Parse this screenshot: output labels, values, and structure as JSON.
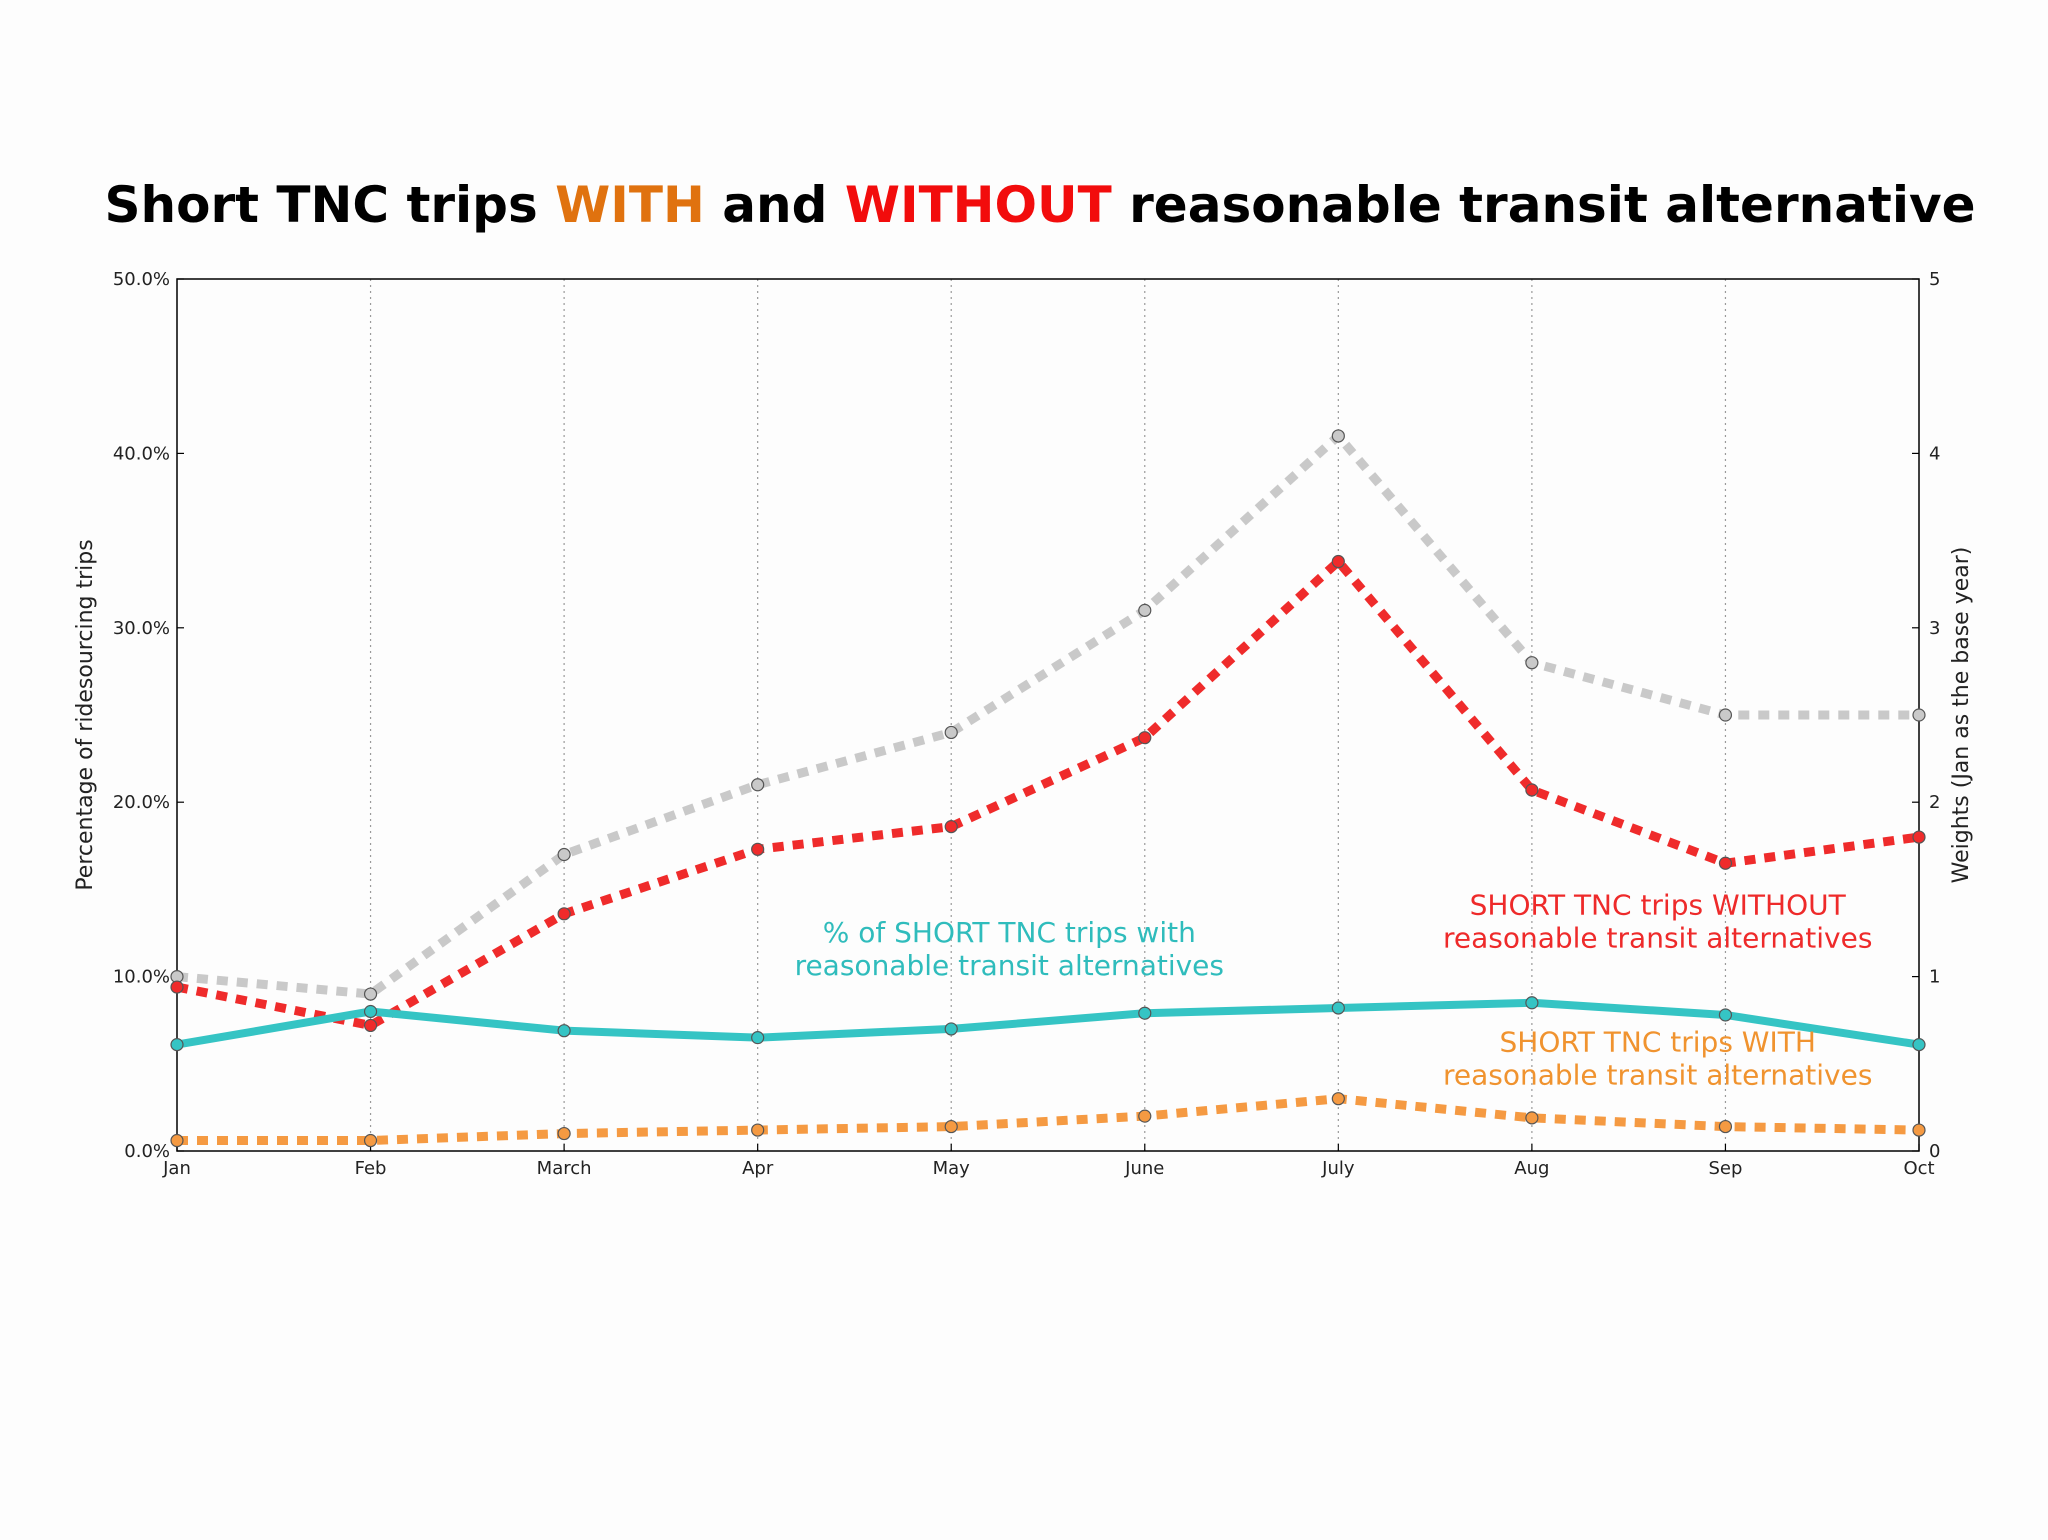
{
  "chart_data": {
    "type": "line",
    "title_parts": [
      {
        "text": "Short TNC trips ",
        "color": "#000000"
      },
      {
        "text": "WITH",
        "color": "#e0720f"
      },
      {
        "text": " and ",
        "color": "#000000"
      },
      {
        "text": "WITHOUT",
        "color": "#f20c0c"
      },
      {
        "text": " reasonable transit alternative",
        "color": "#000000"
      }
    ],
    "categories": [
      "Jan",
      "Feb",
      "March",
      "Apr",
      "May",
      "June",
      "July",
      "Aug",
      "Sep",
      "Oct"
    ],
    "ylabel": "Percentage of ridesourcing trips",
    "y2label": "Weights (Jan as the base year)",
    "ylim": [
      0,
      50
    ],
    "y2lim": [
      0,
      5
    ],
    "yticks": [
      "0.0%",
      "10.0%",
      "20.0%",
      "30.0%",
      "40.0%",
      "50.0%"
    ],
    "y2ticks": [
      "0",
      "1",
      "2",
      "3",
      "4",
      "5"
    ],
    "grid": "vertical dotted",
    "series": [
      {
        "key": "weights",
        "axis": "right",
        "style": "dashed",
        "color": "#c9c9c9",
        "values": [
          1.0,
          0.9,
          1.7,
          2.1,
          2.4,
          3.1,
          4.1,
          2.8,
          2.5,
          2.5
        ]
      },
      {
        "key": "without",
        "axis": "left",
        "style": "dashed",
        "color": "#ef2b2b",
        "values": [
          9.4,
          7.2,
          13.6,
          17.3,
          18.6,
          23.7,
          33.8,
          20.7,
          16.5,
          18.0
        ]
      },
      {
        "key": "pct_with",
        "axis": "left",
        "style": "solid",
        "color": "#35c4c4",
        "values": [
          6.1,
          8.0,
          6.9,
          6.5,
          7.0,
          7.9,
          8.2,
          8.5,
          7.8,
          6.1
        ]
      },
      {
        "key": "with",
        "axis": "left",
        "style": "dashed",
        "color": "#f59a42",
        "values": [
          0.6,
          0.6,
          1.0,
          1.2,
          1.4,
          2.0,
          3.0,
          1.9,
          1.4,
          1.2
        ]
      }
    ],
    "annotations": [
      {
        "series": "pct_with",
        "lines": [
          "% of SHORT TNC trips with",
          "reasonable transit alternatives"
        ],
        "color": "#2fbcbc"
      },
      {
        "series": "without",
        "lines": [
          "SHORT TNC trips WITHOUT",
          "reasonable transit alternatives"
        ],
        "color": "#ee2a2a"
      },
      {
        "series": "with",
        "lines": [
          "SHORT TNC trips WITH",
          "reasonable transit alternatives"
        ],
        "color": "#f0932f"
      }
    ]
  }
}
